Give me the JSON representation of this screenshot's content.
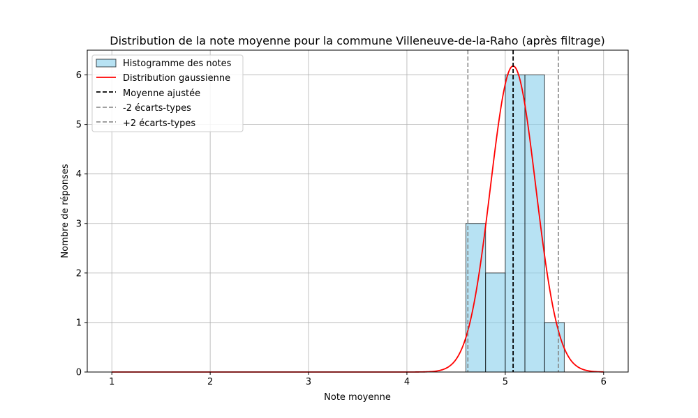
{
  "chart_data": {
    "type": "bar",
    "title": "Distribution de la note moyenne pour la commune Villeneuve-de-la-Raho (après filtrage)",
    "xlabel": "Note moyenne",
    "ylabel": "Nombre de réponses",
    "xlim": [
      0.75,
      6.25
    ],
    "ylim": [
      0,
      6.5
    ],
    "xticks": [
      "1",
      "2",
      "3",
      "4",
      "5",
      "6"
    ],
    "yticks": [
      "0",
      "1",
      "2",
      "3",
      "4",
      "5",
      "6"
    ],
    "grid": true,
    "legend_position": "top-left",
    "histogram": {
      "name": "Histogramme des notes",
      "color": "#87ceeb",
      "edge_color": "#000000",
      "bins": [
        {
          "x0": 4.6,
          "x1": 4.8,
          "count": 3
        },
        {
          "x0": 4.8,
          "x1": 5.0,
          "count": 2
        },
        {
          "x0": 5.0,
          "x1": 5.2,
          "count": 6
        },
        {
          "x0": 5.2,
          "x1": 5.4,
          "count": 6
        },
        {
          "x0": 5.4,
          "x1": 5.6,
          "count": 1
        }
      ]
    },
    "gaussian": {
      "name": "Distribution gaussienne",
      "color": "#ff0000",
      "mean": 5.08,
      "std": 0.23,
      "peak": 6.18,
      "x_range": [
        1,
        6
      ]
    },
    "vlines": [
      {
        "name": "Moyenne ajustée",
        "x": 5.08,
        "color": "#000000",
        "style": "dashed"
      },
      {
        "name": "-2 écarts-types",
        "x": 4.62,
        "color": "#808080",
        "style": "dashed"
      },
      {
        "name": "+2 écarts-types",
        "x": 5.54,
        "color": "#808080",
        "style": "dashed"
      }
    ]
  }
}
